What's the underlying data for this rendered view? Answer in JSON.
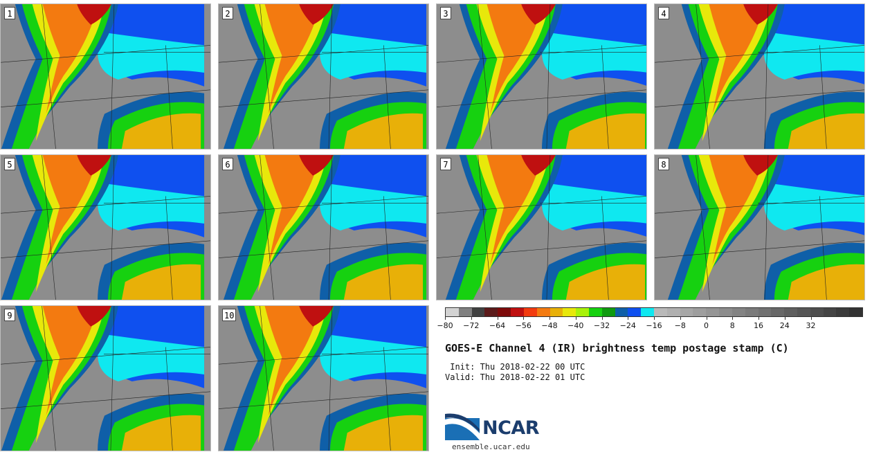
{
  "panels": [
    {
      "label": "1"
    },
    {
      "label": "2"
    },
    {
      "label": "3"
    },
    {
      "label": "4"
    },
    {
      "label": "5"
    },
    {
      "label": "6"
    },
    {
      "label": "7"
    },
    {
      "label": "8"
    },
    {
      "label": "9"
    },
    {
      "label": "10"
    }
  ],
  "colorbar": {
    "colors": [
      "#d3d3d3",
      "#808080",
      "#404040",
      "#5b1a1a",
      "#7d0a0a",
      "#bf1010",
      "#f23b0f",
      "#f37a10",
      "#e8b008",
      "#e8e80b",
      "#a8f20a",
      "#16d110",
      "#0f9a0f",
      "#0f5fa8",
      "#0f50ef",
      "#0fe8f0",
      "#b9b9b9",
      "#b0b0b0",
      "#a7a7a7",
      "#9e9e9e",
      "#959595",
      "#8c8c8c",
      "#838383",
      "#7a7a7a",
      "#717171",
      "#686868",
      "#5f5f5f",
      "#565656",
      "#4d4d4d",
      "#444444",
      "#3b3b3b",
      "#323232"
    ],
    "tick_labels": [
      "−80",
      "−72",
      "−64",
      "−56",
      "−48",
      "−40",
      "−32",
      "−24",
      "−16",
      "−8",
      "0",
      "8",
      "16",
      "24",
      "32"
    ]
  },
  "title": "GOES-E Channel 4 (IR) brightness temp postage stamp (C)",
  "init_label": " Init: Thu 2018-02-22 00 UTC",
  "valid_label": "Valid: Thu 2018-02-22 01 UTC",
  "logo": {
    "text": "NCAR",
    "url": "ensemble.ucar.edu"
  }
}
